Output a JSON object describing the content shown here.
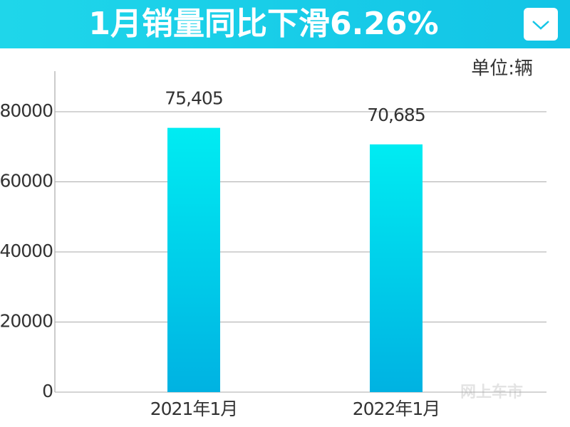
{
  "chart_data": {
    "type": "bar",
    "title": "1月销量同比下滑6.26%",
    "unit_label": "单位:辆",
    "categories": [
      "2021年1月",
      "2022年1月"
    ],
    "values": [
      75405,
      70685
    ],
    "value_labels": [
      "75,405",
      "70,685"
    ],
    "color": "#00d0ec",
    "ylim": [
      0,
      90000
    ],
    "yticks": [
      0,
      20000,
      40000,
      60000,
      80000
    ],
    "grid": true,
    "watermark": "网上车市"
  }
}
